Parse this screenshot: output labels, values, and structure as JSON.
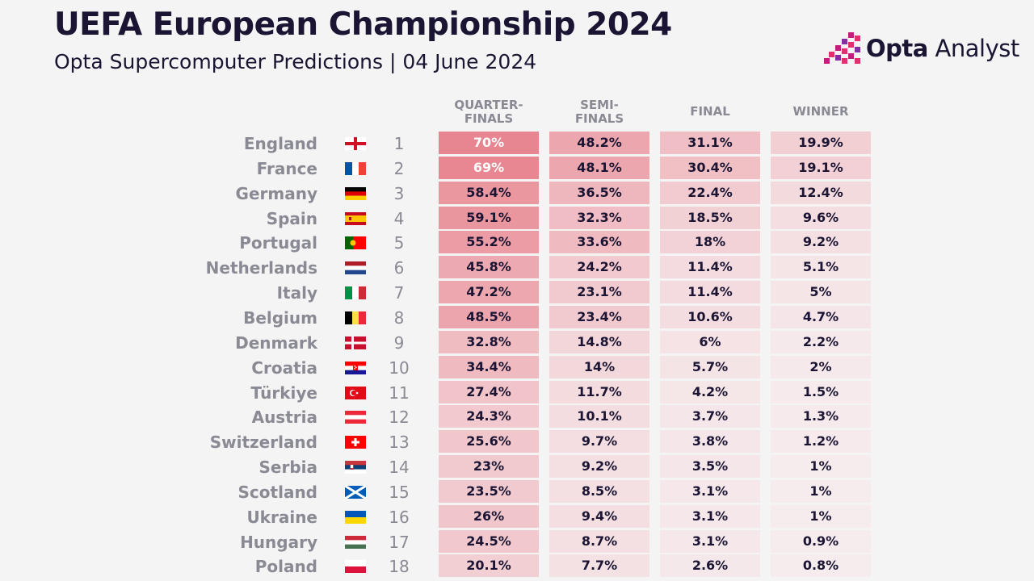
{
  "title": "UEFA European Championship 2024",
  "subtitle": "Opta Supercomputer Predictions | 04 June 2024",
  "brand": {
    "name_bold": "Opta",
    "name_light": " Analyst",
    "accent_colors": [
      "#e0306f",
      "#8a2aa6",
      "#c21f7c"
    ]
  },
  "colors": {
    "background": "#f4f4f4",
    "text": "#1b1533",
    "muted": "#8a8a94",
    "heat_low": "#f6ecee",
    "heat_high": "#e7838e"
  },
  "chart_data": {
    "type": "table",
    "columns": [
      {
        "line1": "QUARTER-",
        "line2": "FINALS"
      },
      {
        "line1": "SEMI-",
        "line2": "FINALS"
      },
      {
        "line1": "FINAL",
        "line2": ""
      },
      {
        "line1": "WINNER",
        "line2": ""
      }
    ],
    "rows": [
      {
        "team": "England",
        "flag": "england-flag",
        "rank": "1",
        "values": [
          70,
          48.2,
          31.1,
          19.9
        ],
        "labels": [
          "70%",
          "48.2%",
          "31.1%",
          "19.9%"
        ]
      },
      {
        "team": "France",
        "flag": "france-flag",
        "rank": "2",
        "values": [
          69,
          48.1,
          30.4,
          19.1
        ],
        "labels": [
          "69%",
          "48.1%",
          "30.4%",
          "19.1%"
        ]
      },
      {
        "team": "Germany",
        "flag": "germany-flag",
        "rank": "3",
        "values": [
          58.4,
          36.5,
          22.4,
          12.4
        ],
        "labels": [
          "58.4%",
          "36.5%",
          "22.4%",
          "12.4%"
        ]
      },
      {
        "team": "Spain",
        "flag": "spain-flag",
        "rank": "4",
        "values": [
          59.1,
          32.3,
          18.5,
          9.6
        ],
        "labels": [
          "59.1%",
          "32.3%",
          "18.5%",
          "9.6%"
        ]
      },
      {
        "team": "Portugal",
        "flag": "portugal-flag",
        "rank": "5",
        "values": [
          55.2,
          33.6,
          18,
          9.2
        ],
        "labels": [
          "55.2%",
          "33.6%",
          "18%",
          "9.2%"
        ]
      },
      {
        "team": "Netherlands",
        "flag": "netherlands-flag",
        "rank": "6",
        "values": [
          45.8,
          24.2,
          11.4,
          5.1
        ],
        "labels": [
          "45.8%",
          "24.2%",
          "11.4%",
          "5.1%"
        ]
      },
      {
        "team": "Italy",
        "flag": "italy-flag",
        "rank": "7",
        "values": [
          47.2,
          23.1,
          11.4,
          5
        ],
        "labels": [
          "47.2%",
          "23.1%",
          "11.4%",
          "5%"
        ]
      },
      {
        "team": "Belgium",
        "flag": "belgium-flag",
        "rank": "8",
        "values": [
          48.5,
          23.4,
          10.6,
          4.7
        ],
        "labels": [
          "48.5%",
          "23.4%",
          "10.6%",
          "4.7%"
        ]
      },
      {
        "team": "Denmark",
        "flag": "denmark-flag",
        "rank": "9",
        "values": [
          32.8,
          14.8,
          6,
          2.2
        ],
        "labels": [
          "32.8%",
          "14.8%",
          "6%",
          "2.2%"
        ]
      },
      {
        "team": "Croatia",
        "flag": "croatia-flag",
        "rank": "10",
        "values": [
          34.4,
          14,
          5.7,
          2
        ],
        "labels": [
          "34.4%",
          "14%",
          "5.7%",
          "2%"
        ]
      },
      {
        "team": "Türkiye",
        "flag": "turkiye-flag",
        "rank": "11",
        "values": [
          27.4,
          11.7,
          4.2,
          1.5
        ],
        "labels": [
          "27.4%",
          "11.7%",
          "4.2%",
          "1.5%"
        ]
      },
      {
        "team": "Austria",
        "flag": "austria-flag",
        "rank": "12",
        "values": [
          24.3,
          10.1,
          3.7,
          1.3
        ],
        "labels": [
          "24.3%",
          "10.1%",
          "3.7%",
          "1.3%"
        ]
      },
      {
        "team": "Switzerland",
        "flag": "switzerland-flag",
        "rank": "13",
        "values": [
          25.6,
          9.7,
          3.8,
          1.2
        ],
        "labels": [
          "25.6%",
          "9.7%",
          "3.8%",
          "1.2%"
        ]
      },
      {
        "team": "Serbia",
        "flag": "serbia-flag",
        "rank": "14",
        "values": [
          23,
          9.2,
          3.5,
          1
        ],
        "labels": [
          "23%",
          "9.2%",
          "3.5%",
          "1%"
        ]
      },
      {
        "team": "Scotland",
        "flag": "scotland-flag",
        "rank": "15",
        "values": [
          23.5,
          8.5,
          3.1,
          1
        ],
        "labels": [
          "23.5%",
          "8.5%",
          "3.1%",
          "1%"
        ]
      },
      {
        "team": "Ukraine",
        "flag": "ukraine-flag",
        "rank": "16",
        "values": [
          26,
          9.4,
          3.1,
          1
        ],
        "labels": [
          "26%",
          "9.4%",
          "3.1%",
          "1%"
        ]
      },
      {
        "team": "Hungary",
        "flag": "hungary-flag",
        "rank": "17",
        "values": [
          24.5,
          8.7,
          3.1,
          0.9
        ],
        "labels": [
          "24.5%",
          "8.7%",
          "3.1%",
          "0.9%"
        ]
      },
      {
        "team": "Poland",
        "flag": "poland-flag",
        "rank": "18",
        "values": [
          20.1,
          7.7,
          2.6,
          0.8
        ],
        "labels": [
          "20.1%",
          "7.7%",
          "2.6%",
          "0.8%"
        ]
      }
    ]
  }
}
